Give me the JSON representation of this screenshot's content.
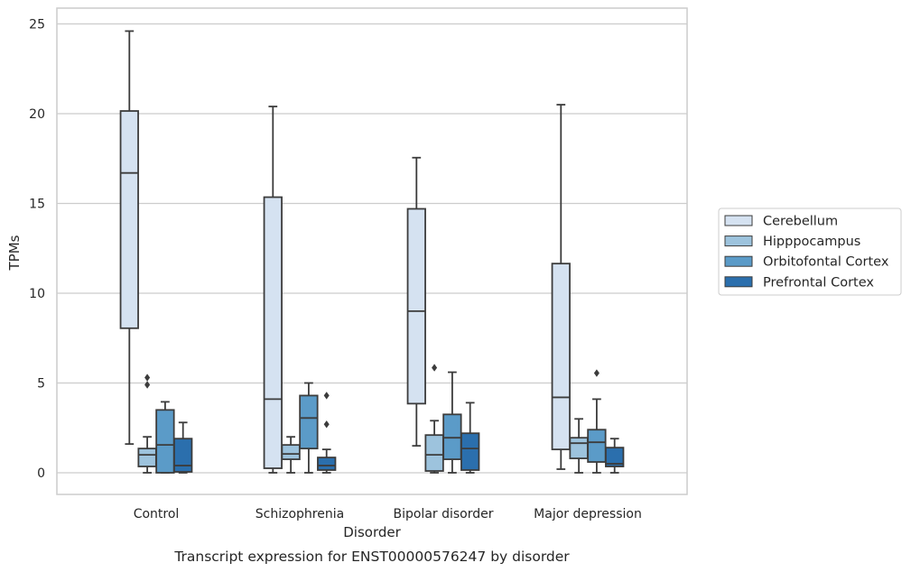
{
  "chart_data": {
    "type": "box",
    "xlabel": "Disorder",
    "ylabel": "TPMs",
    "caption": "Transcript expression for ENST00000576247 by disorder",
    "ylim": [
      -1.2,
      26
    ],
    "yticks": [
      0,
      5,
      10,
      15,
      20,
      25
    ],
    "grid": "horizontal",
    "legend_position": "right",
    "categories": [
      "Control",
      "Schizophrenia",
      "Bipolar disorder",
      "Major depression"
    ],
    "series": [
      {
        "name": "Cerebellum",
        "color": "#d5e2f1",
        "boxes": [
          {
            "whisker_low": 1.6,
            "q1": 8.05,
            "median": 16.7,
            "q3": 20.15,
            "whisker_high": 24.6,
            "outliers": []
          },
          {
            "whisker_low": 0.0,
            "q1": 0.25,
            "median": 4.1,
            "q3": 15.35,
            "whisker_high": 20.4,
            "outliers": []
          },
          {
            "whisker_low": 1.5,
            "q1": 3.85,
            "median": 9.0,
            "q3": 14.7,
            "whisker_high": 17.55,
            "outliers": []
          },
          {
            "whisker_low": 0.2,
            "q1": 1.3,
            "median": 4.2,
            "q3": 11.65,
            "whisker_high": 20.5,
            "outliers": []
          }
        ]
      },
      {
        "name": "Hipppocampus",
        "color": "#9dc3dd",
        "boxes": [
          {
            "whisker_low": 0.0,
            "q1": 0.35,
            "median": 1.0,
            "q3": 1.35,
            "whisker_high": 2.0,
            "outliers": [
              4.9,
              5.3
            ]
          },
          {
            "whisker_low": 0.0,
            "q1": 0.75,
            "median": 1.05,
            "q3": 1.55,
            "whisker_high": 2.0,
            "outliers": []
          },
          {
            "whisker_low": 0.0,
            "q1": 0.1,
            "median": 1.0,
            "q3": 2.1,
            "whisker_high": 2.9,
            "outliers": [
              5.85
            ]
          },
          {
            "whisker_low": 0.0,
            "q1": 0.8,
            "median": 1.65,
            "q3": 1.95,
            "whisker_high": 3.0,
            "outliers": []
          }
        ]
      },
      {
        "name": "Orbitofontal Cortex",
        "color": "#5b9bc8",
        "boxes": [
          {
            "whisker_low": 0.0,
            "q1": 0.0,
            "median": 1.55,
            "q3": 3.5,
            "whisker_high": 3.95,
            "outliers": []
          },
          {
            "whisker_low": 0.0,
            "q1": 1.35,
            "median": 3.05,
            "q3": 4.3,
            "whisker_high": 5.0,
            "outliers": []
          },
          {
            "whisker_low": 0.0,
            "q1": 0.75,
            "median": 1.95,
            "q3": 3.25,
            "whisker_high": 5.6,
            "outliers": []
          },
          {
            "whisker_low": 0.0,
            "q1": 0.6,
            "median": 1.7,
            "q3": 2.4,
            "whisker_high": 4.1,
            "outliers": [
              5.55
            ]
          }
        ]
      },
      {
        "name": "Prefrontal Cortex",
        "color": "#2b6fad",
        "boxes": [
          {
            "whisker_low": 0.0,
            "q1": 0.05,
            "median": 0.4,
            "q3": 1.9,
            "whisker_high": 2.8,
            "outliers": []
          },
          {
            "whisker_low": 0.0,
            "q1": 0.15,
            "median": 0.4,
            "q3": 0.85,
            "whisker_high": 1.3,
            "outliers": [
              2.7,
              4.3
            ]
          },
          {
            "whisker_low": 0.0,
            "q1": 0.15,
            "median": 1.35,
            "q3": 2.2,
            "whisker_high": 3.9,
            "outliers": []
          },
          {
            "whisker_low": 0.0,
            "q1": 0.35,
            "median": 0.5,
            "q3": 1.4,
            "whisker_high": 1.9,
            "outliers": []
          }
        ]
      }
    ]
  }
}
